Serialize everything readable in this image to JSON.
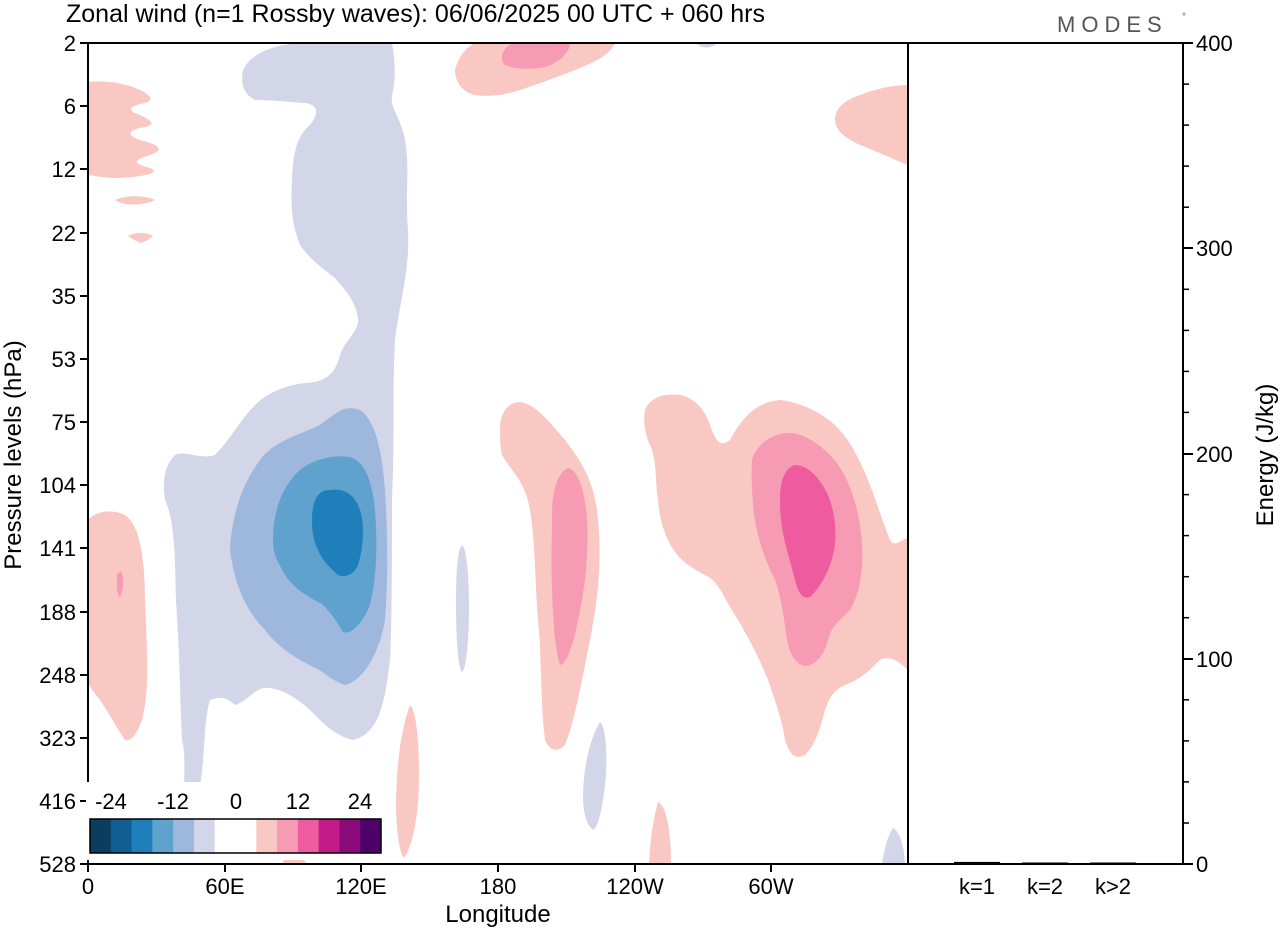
{
  "title": "Zonal wind (n=1 Rossby waves):  06/06/2025  00 UTC  + 060 hrs",
  "logo": "MODES",
  "logo_mark": "°",
  "chart_data": [
    {
      "type": "heatmap",
      "name": "zonal-wind-contour",
      "xlabel": "Longitude",
      "ylabel": "Pressure levels (hPa)",
      "x_ticks": [
        "0",
        "60E",
        "120E",
        "180",
        "120W",
        "60W"
      ],
      "x_tick_values": [
        0,
        60,
        120,
        180,
        240,
        300
      ],
      "xlim": [
        0,
        360
      ],
      "y_ticks": [
        "2",
        "6",
        "12",
        "22",
        "35",
        "53",
        "75",
        "104",
        "141",
        "188",
        "248",
        "323",
        "416",
        "528"
      ],
      "y_scale": "pressure (log-like), inverted",
      "colorbar": {
        "ticks": [
          "-24",
          "-12",
          "0",
          "12",
          "24"
        ],
        "colors": [
          "#0b3d5e",
          "#0f5f93",
          "#1f7fba",
          "#5fa2cd",
          "#9db8dc",
          "#d3d5e8",
          "#ffffff",
          "#ffffff",
          "#f9c8c3",
          "#f79bb5",
          "#ee5b9e",
          "#c51b8a",
          "#8a0a7a",
          "#4e006b"
        ]
      },
      "regions": [
        {
          "sign": "negative",
          "peak_level": "about -20",
          "lon_range": [
            60,
            125
          ],
          "pressure_range": [
            "2",
            "416"
          ]
        },
        {
          "sign": "positive",
          "peak_level": "about 12",
          "lon_range": [
            185,
            225
          ],
          "pressure_range": [
            "75",
            "323"
          ]
        },
        {
          "sign": "positive",
          "peak_level": "about 16",
          "lon_range": [
            280,
            360
          ],
          "pressure_range": [
            "75",
            "323"
          ]
        },
        {
          "sign": "positive",
          "peak_level": "about 4",
          "lon_range": [
            0,
            25
          ],
          "pressure_range": [
            "6",
            "22"
          ]
        },
        {
          "sign": "positive",
          "peak_level": "about 8",
          "lon_range": [
            160,
            230
          ],
          "pressure_range": [
            "2",
            "6"
          ]
        }
      ]
    },
    {
      "type": "bar",
      "name": "energy-bars",
      "categories": [
        "k=1",
        "k=2",
        "k>2"
      ],
      "values": [
        1,
        0.5,
        0.5
      ],
      "ylabel": "Energy (J/kg)",
      "y_ticks": [
        "0",
        "100",
        "200",
        "300",
        "400"
      ],
      "ylim": [
        0,
        400
      ]
    }
  ]
}
